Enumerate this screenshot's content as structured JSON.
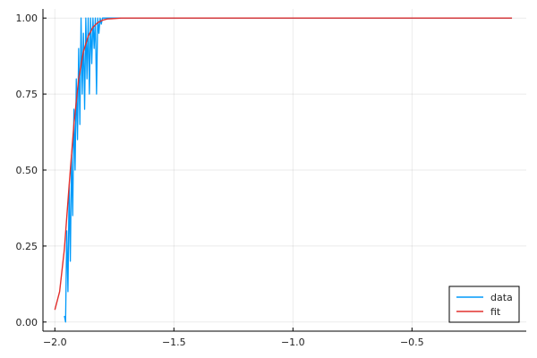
{
  "chart_data": {
    "type": "line",
    "title": "",
    "xlabel": "",
    "ylabel": "",
    "xlim": [
      -2.05,
      -0.02
    ],
    "ylim": [
      -0.03,
      1.03
    ],
    "xticks": [
      -2.0,
      -1.5,
      -1.0,
      -0.5
    ],
    "xtick_labels": [
      "−2.0",
      "−1.5",
      "−1.0",
      "−0.5"
    ],
    "yticks": [
      0.0,
      0.25,
      0.5,
      0.75,
      1.0
    ],
    "ytick_labels": [
      "0.00",
      "0.25",
      "0.50",
      "0.75",
      "1.00"
    ],
    "grid": true,
    "legend_position": "bottom-right",
    "series": [
      {
        "name": "data",
        "color": "#009AFA",
        "style": "noisy-line",
        "x": [
          -1.96,
          -1.955,
          -1.95,
          -1.945,
          -1.94,
          -1.935,
          -1.93,
          -1.925,
          -1.92,
          -1.915,
          -1.91,
          -1.905,
          -1.9,
          -1.895,
          -1.89,
          -1.885,
          -1.88,
          -1.875,
          -1.87,
          -1.865,
          -1.86,
          -1.855,
          -1.85,
          -1.845,
          -1.84,
          -1.835,
          -1.83,
          -1.825,
          -1.82,
          -1.815,
          -1.81,
          -1.805,
          -1.8,
          -1.75,
          -1.5,
          -1.0,
          -0.5,
          -0.08
        ],
        "y": [
          0.02,
          0.0,
          0.3,
          0.1,
          0.45,
          0.2,
          0.55,
          0.35,
          0.7,
          0.5,
          0.8,
          0.6,
          0.9,
          0.65,
          1.0,
          0.75,
          0.95,
          0.7,
          1.0,
          0.8,
          1.0,
          0.75,
          1.0,
          0.85,
          1.0,
          0.9,
          1.0,
          0.75,
          1.0,
          0.95,
          1.0,
          0.98,
          1.0,
          1.0,
          1.0,
          1.0,
          1.0,
          1.0
        ]
      },
      {
        "name": "fit",
        "color": "#E2302E",
        "style": "line",
        "x": [
          -2.0,
          -1.98,
          -1.96,
          -1.94,
          -1.92,
          -1.9,
          -1.88,
          -1.86,
          -1.84,
          -1.82,
          -1.8,
          -1.78,
          -1.76,
          -1.74,
          -1.72,
          -1.7,
          -1.65,
          -1.6,
          -1.5,
          -1.4,
          -1.2,
          -1.0,
          -0.8,
          -0.6,
          -0.4,
          -0.2,
          -0.08
        ],
        "y": [
          0.04,
          0.1,
          0.24,
          0.45,
          0.65,
          0.8,
          0.89,
          0.94,
          0.97,
          0.985,
          0.993,
          0.997,
          0.998,
          0.999,
          1.0,
          1.0,
          1.0,
          1.0,
          1.0,
          1.0,
          1.0,
          1.0,
          1.0,
          1.0,
          1.0,
          1.0,
          1.0
        ]
      }
    ]
  }
}
